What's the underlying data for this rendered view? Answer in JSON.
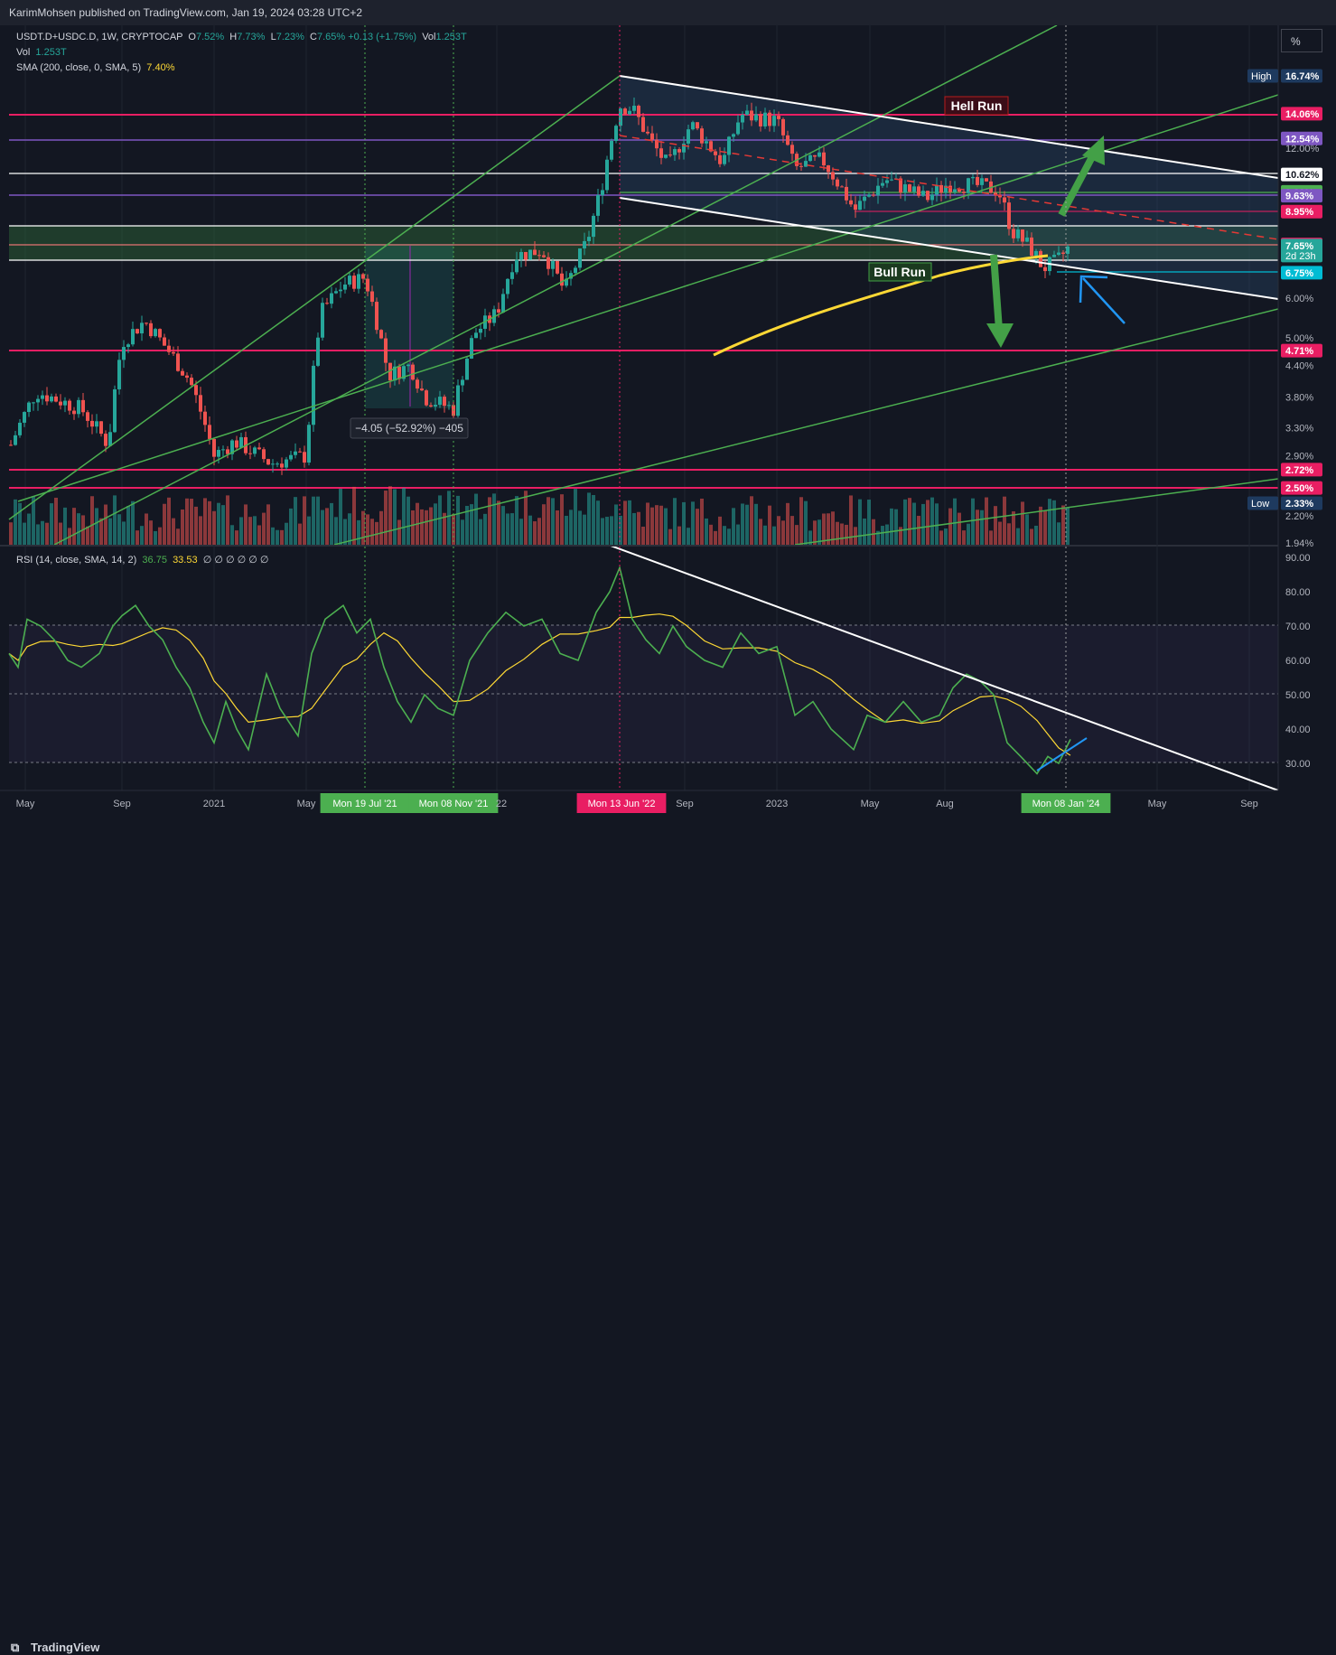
{
  "header": {
    "publisher": "KarimMohsen published on TradingView.com, Jan 19, 2024 03:28 UTC+2",
    "symbol": "USDT.D+USDC.D, 1W, CRYPTOCAP",
    "ohlc": {
      "o": "7.52%",
      "h": "7.73%",
      "l": "7.23%",
      "c": "7.65%",
      "change": "+0.13 (+1.75%)",
      "vol": "1.253T"
    },
    "vol_line": {
      "label": "Vol",
      "value": "1.253T"
    },
    "sma_line": {
      "label": "SMA (200, close, 0, SMA, 5)",
      "value": "7.40%"
    },
    "percent_button": "%"
  },
  "rsi_legend": {
    "label": "RSI (14, close, SMA, 14, 2)",
    "rsi": "36.75",
    "sma": "33.53",
    "extra": "∅ ∅ ∅ ∅ ∅ ∅"
  },
  "footer": {
    "brand": "TradingView"
  },
  "annotations": {
    "hell_run": "Hell Run",
    "bull_run": "Bull Run",
    "measure": "−4.05 (−52.92%) −405"
  },
  "colors": {
    "bg": "#131722",
    "up": "#26a69a",
    "down": "#ef5350",
    "magenta": "#e91e63",
    "purple": "#7e57c2",
    "green_line": "#4caf50",
    "sma": "#fdd835",
    "white": "#ffffff",
    "cyan": "#00bcd4",
    "blue_arrow": "#2196f3"
  },
  "chart_data": {
    "type": "candlestick",
    "price_axis": {
      "scale": "log",
      "ticks": [
        "12.00%",
        "9.80%",
        "8.95%",
        "7.69%",
        "6.00%",
        "5.00%",
        "4.40%",
        "3.80%",
        "3.30%",
        "2.90%",
        "2.20%",
        "1.94%"
      ],
      "labels": [
        {
          "text": "16.74%",
          "tag": "High",
          "value": 16.74,
          "color": "#1e3a5f"
        },
        {
          "text": "14.06%",
          "value": 14.06,
          "color": "#e91e63"
        },
        {
          "text": "12.54%",
          "value": 12.54,
          "color": "#7e57c2"
        },
        {
          "text": "10.62%",
          "value": 10.62,
          "color": "#ffffff"
        },
        {
          "text": "9.80%",
          "value": 9.8,
          "color": "#4caf50"
        },
        {
          "text": "9.63%",
          "value": 9.63,
          "color": "#7e57c2"
        },
        {
          "text": "8.95%",
          "value": 8.95,
          "color": "#e91e63"
        },
        {
          "text": "7.69%",
          "value": 7.69,
          "color": "#e91e63"
        },
        {
          "text": "7.65%",
          "sub": "2d 23h",
          "value": 7.65,
          "color": "#26a69a"
        },
        {
          "text": "6.75%",
          "value": 6.75,
          "color": "#00bcd4"
        },
        {
          "text": "4.71%",
          "value": 4.71,
          "color": "#e91e63"
        },
        {
          "text": "2.72%",
          "value": 2.72,
          "color": "#e91e63"
        },
        {
          "text": "2.50%",
          "value": 2.5,
          "color": "#e91e63"
        },
        {
          "text": "2.33%",
          "tag": "Low",
          "value": 2.33,
          "color": "#1e3a5f"
        }
      ]
    },
    "rsi_axis": {
      "ticks": [
        90,
        80,
        70,
        60,
        50,
        40,
        30
      ],
      "overbought": 70,
      "oversold": 30,
      "mid": 50
    },
    "time_axis": {
      "labels": [
        "May",
        "Sep",
        "2021",
        "May",
        "Mon 19 Jul '21",
        "Mon 08 Nov '21",
        "22",
        "Mon 13 Jun '22",
        "Sep",
        "2023",
        "May",
        "Aug",
        "Mon 08 Jan '24",
        "May",
        "Sep"
      ],
      "highlight": {
        "Mon 19 Jul '21": "#4caf50",
        "Mon 08 Nov '21": "#4caf50",
        "Mon 13 Jun '22": "#e91e63",
        "Mon 08 Jan '24": "#4caf50"
      }
    },
    "key_points": [
      {
        "date": "2021-07-19",
        "value": 7.69
      },
      {
        "date": "2021-11-08",
        "value": 3.6
      },
      {
        "date": "2022-06-13",
        "value": 16.74
      },
      {
        "date": "2024-01-08",
        "value": 7.65
      }
    ],
    "horizontal_levels": [
      14.06,
      12.54,
      10.62,
      9.63,
      8.95,
      7.69,
      7.0,
      4.71,
      2.72,
      2.5
    ],
    "sma_200_current": 7.4,
    "rsi_current": 36.75,
    "rsi_sma_current": 33.53,
    "volume_current": "1.253T"
  }
}
